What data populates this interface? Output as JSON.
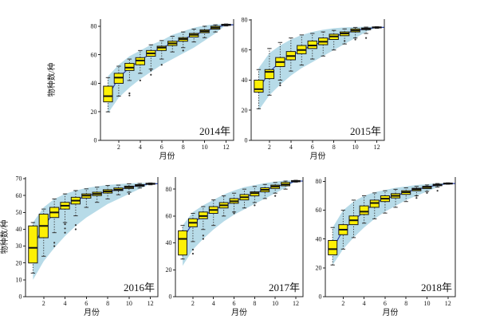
{
  "figure": {
    "description": "Monthly species accumulation box plots for five years",
    "background": "#ffffff"
  },
  "colors": {
    "box_fill": "#fdf005",
    "box_stroke": "#1a1a1a",
    "median": "#111111",
    "whisker": "#333333",
    "band": "#b7dbe8",
    "trend_line": "#2a3eae",
    "axis": "#222222",
    "text": "#111111",
    "outlier": "#333333"
  },
  "chart_data": [
    {
      "type": "boxplot",
      "year_label": "2014年",
      "xlabel": "月份",
      "ylabel": "物种数/种",
      "show_ylabel": true,
      "months": [
        1,
        2,
        3,
        4,
        5,
        6,
        7,
        8,
        9,
        10,
        11,
        12
      ],
      "xticks": [
        2,
        4,
        6,
        8,
        10,
        12
      ],
      "yticks": [
        0,
        20,
        40,
        60,
        80
      ],
      "xlim": [
        0.3,
        12.7
      ],
      "ylim": [
        0,
        85
      ],
      "median": [
        31,
        44,
        51,
        56,
        61,
        65,
        68,
        71,
        74,
        76.5,
        79,
        81
      ],
      "q1": [
        27,
        40,
        49,
        53,
        59,
        63,
        66.5,
        69.5,
        72.5,
        75.5,
        78,
        80.6
      ],
      "q3": [
        38,
        47,
        54,
        58,
        63,
        66,
        69.5,
        72,
        75,
        77.5,
        80,
        81.4
      ],
      "whisker_low": [
        20,
        31,
        42,
        47,
        50,
        57,
        62,
        65,
        69,
        72,
        76,
        80.2
      ],
      "whisker_high": [
        44,
        52,
        57,
        63,
        67,
        70,
        73,
        76,
        78,
        80,
        81,
        81.6
      ],
      "band_lower": [
        19,
        30,
        37,
        43,
        48,
        53,
        57,
        61,
        65,
        70,
        75,
        81
      ],
      "band_upper": [
        45,
        53,
        59,
        63,
        67,
        70,
        74,
        76.5,
        79,
        80.5,
        81.5,
        81.5
      ],
      "outliers": [
        [
          3,
          33
        ],
        [
          3,
          31.5
        ],
        [
          4,
          42
        ],
        [
          5,
          46
        ],
        [
          5,
          49
        ],
        [
          6,
          53
        ],
        [
          8,
          63
        ]
      ],
      "margins": {
        "l": 68,
        "r": 7,
        "t": 22,
        "b": 28
      }
    },
    {
      "type": "boxplot",
      "year_label": "2015年",
      "xlabel": "月份",
      "ylabel": "物种数/种",
      "show_ylabel": false,
      "months": [
        1,
        2,
        3,
        4,
        5,
        6,
        7,
        8,
        9,
        10,
        11,
        12
      ],
      "xticks": [
        2,
        4,
        6,
        8,
        10,
        12
      ],
      "yticks": [
        0,
        20,
        40,
        60,
        80
      ],
      "xlim": [
        0.3,
        12.7
      ],
      "ylim": [
        0,
        80.5
      ],
      "median": [
        34,
        45.5,
        52,
        56,
        60,
        63,
        65.5,
        69,
        71,
        73,
        74,
        75
      ],
      "q1": [
        32,
        41,
        49,
        53.5,
        57.5,
        61,
        63.5,
        67,
        69.5,
        72,
        73.5,
        74.7
      ],
      "q3": [
        40,
        47,
        55,
        59,
        63,
        66,
        68,
        70.5,
        72,
        74,
        74.6,
        75.3
      ],
      "whisker_low": [
        21,
        30,
        40,
        46,
        50,
        54,
        56,
        60,
        64,
        68,
        71,
        74.4
      ],
      "whisker_high": [
        47,
        61,
        65,
        68,
        70,
        71,
        72,
        73,
        74,
        75,
        75.2,
        75.5
      ],
      "band_lower": [
        20,
        30,
        37,
        43,
        48,
        52,
        56,
        60,
        64,
        68,
        72,
        75
      ],
      "band_upper": [
        48,
        58,
        63,
        67,
        70,
        72,
        73.5,
        74.5,
        75,
        75.3,
        75.5,
        75.5
      ],
      "outliers": [
        [
          3,
          38
        ],
        [
          3,
          36.5
        ],
        [
          9,
          66
        ],
        [
          10,
          67
        ],
        [
          11,
          68
        ]
      ],
      "margins": {
        "l": 25,
        "r": 8,
        "t": 22,
        "b": 28
      }
    },
    {
      "type": "boxplot",
      "year_label": "2016年",
      "xlabel": "月份",
      "ylabel": "物种数/种",
      "show_ylabel": true,
      "months": [
        1,
        2,
        3,
        4,
        5,
        6,
        7,
        8,
        9,
        10,
        11,
        12
      ],
      "xticks": [
        2,
        4,
        6,
        8,
        10,
        12
      ],
      "yticks": [
        0,
        10,
        20,
        30,
        40,
        50,
        60,
        70
      ],
      "xlim": [
        0.3,
        12.7
      ],
      "ylim": [
        0,
        71
      ],
      "median": [
        29,
        42,
        50,
        54,
        57,
        60,
        61,
        62.5,
        63.5,
        65,
        66,
        67
      ],
      "q1": [
        20,
        35,
        47,
        52,
        55,
        58.5,
        60,
        61.5,
        63,
        64.2,
        65.5,
        66.7
      ],
      "q3": [
        42,
        49,
        53,
        56,
        59,
        61,
        62,
        63.5,
        64.5,
        65.6,
        66.5,
        67.3
      ],
      "whisker_low": [
        14,
        24,
        38,
        44,
        48,
        53,
        56,
        58,
        60.5,
        62,
        64.5,
        66.4
      ],
      "whisker_high": [
        44,
        52,
        58,
        61,
        63,
        64,
        65,
        66,
        66.2,
        67,
        67.2,
        67.5
      ],
      "band_lower": [
        10,
        21,
        29,
        36,
        42,
        47,
        51,
        55,
        58,
        61,
        64,
        67
      ],
      "band_upper": [
        44,
        53,
        58,
        61,
        63,
        64.5,
        65.5,
        66.3,
        66.8,
        67.2,
        67.5,
        67.5
      ],
      "outliers": [
        [
          3,
          30
        ],
        [
          3,
          32
        ],
        [
          4,
          38
        ],
        [
          4,
          40.5
        ],
        [
          4,
          43
        ],
        [
          5,
          40
        ],
        [
          5,
          42.5
        ],
        [
          10,
          61
        ]
      ],
      "margins": {
        "l": 30,
        "r": 6,
        "t": 10,
        "b": 32
      }
    },
    {
      "type": "boxplot",
      "year_label": "2017年",
      "xlabel": "月份",
      "ylabel": "物种数/种",
      "show_ylabel": false,
      "months": [
        1,
        2,
        3,
        4,
        5,
        6,
        7,
        8,
        9,
        10,
        11,
        12
      ],
      "xticks": [
        2,
        4,
        6,
        8,
        10,
        12
      ],
      "yticks": [
        0,
        20,
        40,
        60,
        80
      ],
      "xlim": [
        0.3,
        12.7
      ],
      "ylim": [
        0,
        89
      ],
      "median": [
        43,
        55,
        60,
        64.5,
        68,
        71,
        74,
        77,
        79.5,
        82,
        83.5,
        86
      ],
      "q1": [
        31,
        52,
        58,
        62,
        66,
        69.5,
        72,
        75,
        78,
        80.5,
        82.5,
        85.5
      ],
      "q3": [
        49,
        58,
        63,
        67,
        70,
        73,
        76,
        78,
        81,
        83,
        85,
        86.4
      ],
      "whisker_low": [
        28,
        41,
        50,
        53,
        60,
        63,
        66,
        70,
        73,
        77,
        80,
        85.2
      ],
      "whisker_high": [
        53,
        62,
        67,
        72,
        75,
        77,
        80,
        82,
        83.5,
        85,
        86,
        86.6
      ],
      "band_lower": [
        23,
        35,
        43,
        50,
        56,
        61,
        65,
        69,
        73,
        77,
        81,
        86
      ],
      "band_upper": [
        53,
        63,
        68,
        72,
        76,
        79,
        81.5,
        83,
        84.5,
        85.5,
        86.5,
        86.5
      ],
      "outliers": [
        [
          2,
          32
        ],
        [
          2,
          35
        ],
        [
          3,
          43
        ],
        [
          3,
          45.5
        ],
        [
          6,
          62
        ],
        [
          8,
          68
        ],
        [
          10,
          75
        ]
      ],
      "margins": {
        "l": 20,
        "r": 6,
        "t": 10,
        "b": 32
      }
    },
    {
      "type": "boxplot",
      "year_label": "2018年",
      "xlabel": "月份",
      "ylabel": "物种数/种",
      "show_ylabel": false,
      "months": [
        1,
        2,
        3,
        4,
        5,
        6,
        7,
        8,
        9,
        10,
        11,
        12
      ],
      "xticks": [
        2,
        4,
        6,
        8,
        10,
        12
      ],
      "yticks": [
        0,
        20,
        40,
        60,
        80
      ],
      "xlim": [
        0.3,
        12.7
      ],
      "ylim": [
        0,
        83
      ],
      "median": [
        33,
        46.5,
        53,
        59,
        65,
        68,
        70,
        72.5,
        74.5,
        76,
        77.5,
        78.5
      ],
      "q1": [
        29,
        43,
        50,
        57,
        62,
        66,
        68.5,
        71,
        73.5,
        75,
        77,
        78.2
      ],
      "q3": [
        39,
        50,
        56,
        63,
        67,
        70,
        71.5,
        73.5,
        75.2,
        76.6,
        78,
        78.8
      ],
      "whisker_low": [
        22,
        33,
        41,
        51,
        54,
        58,
        62,
        66,
        70,
        73,
        76,
        78
      ],
      "whisker_high": [
        48,
        60,
        67,
        70,
        72,
        73.5,
        74.5,
        75.5,
        76.5,
        77.5,
        78.5,
        79
      ],
      "band_lower": [
        22,
        33,
        41,
        48,
        54,
        59,
        63,
        67,
        70,
        73,
        76,
        78.5
      ],
      "band_upper": [
        48,
        60,
        66,
        70,
        72.5,
        74,
        75.5,
        76.5,
        77.5,
        78,
        78.7,
        78.7
      ],
      "outliers": [
        [
          9,
          68.5
        ],
        [
          9,
          70
        ],
        [
          10,
          72
        ],
        [
          11,
          73.5
        ]
      ],
      "margins": {
        "l": 20,
        "r": 7,
        "t": 10,
        "b": 32
      }
    }
  ]
}
